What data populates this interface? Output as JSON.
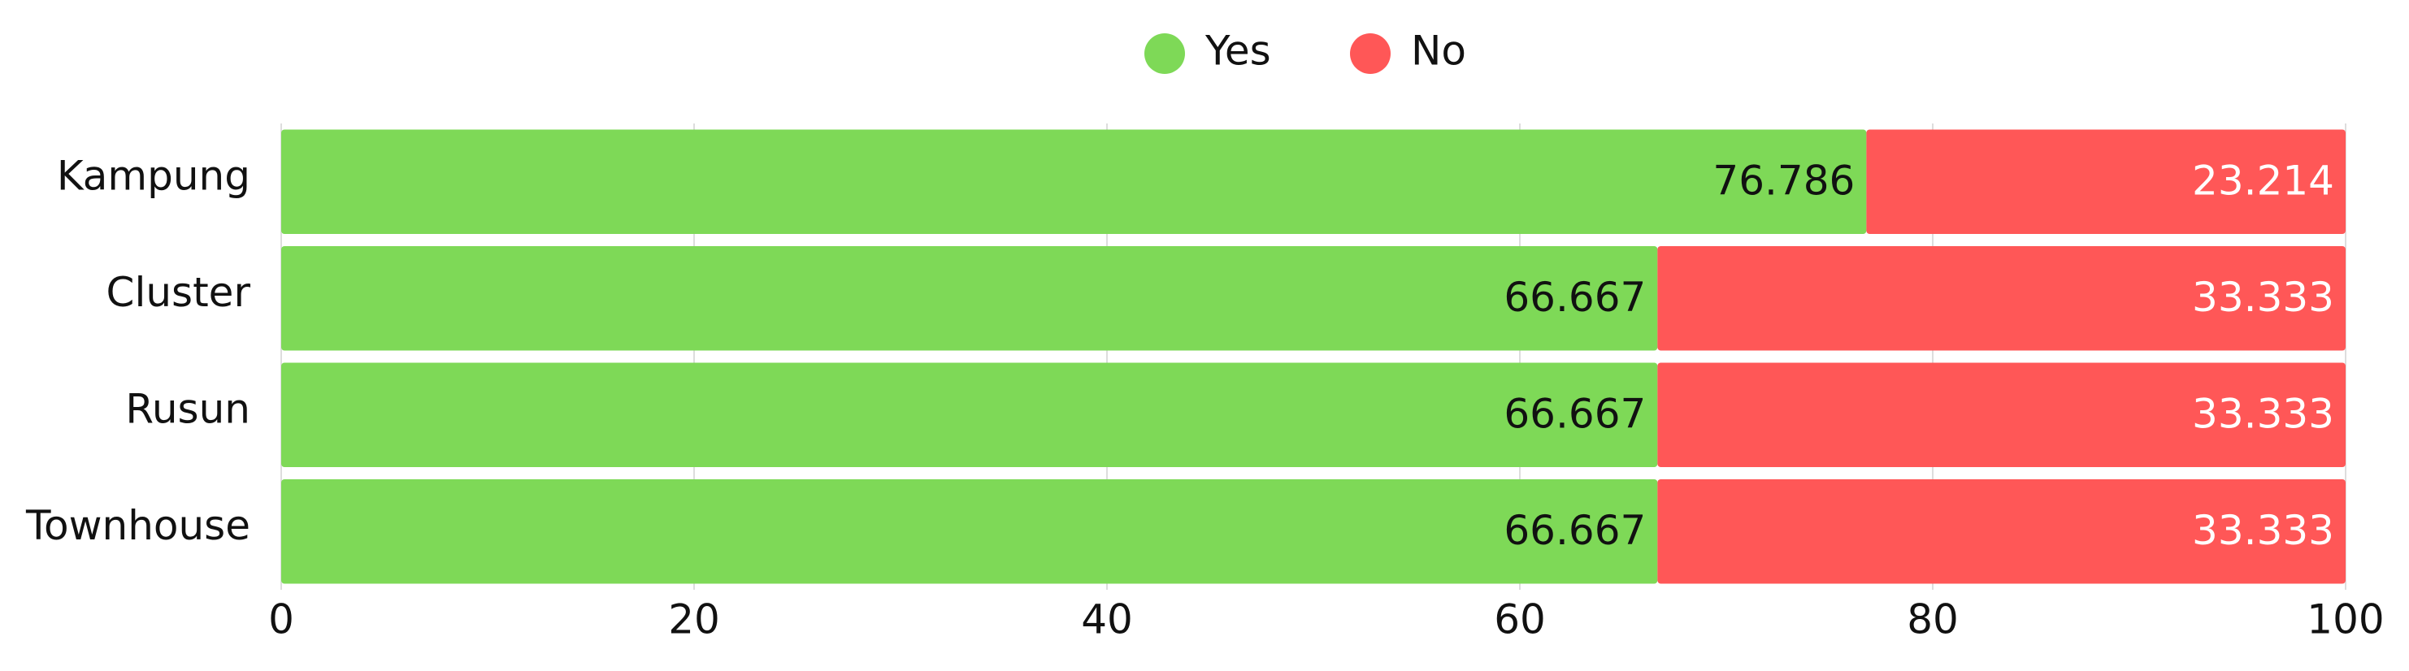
{
  "chart_data": {
    "type": "bar",
    "orientation": "horizontal",
    "stacked": true,
    "categories": [
      "Kampung",
      "Cluster",
      "Rusun",
      "Townhouse"
    ],
    "series": [
      {
        "name": "Yes",
        "color": "#7ed957",
        "values": [
          76.786,
          66.667,
          66.667,
          66.667
        ]
      },
      {
        "name": "No",
        "color": "#ff5757",
        "values": [
          23.214,
          33.333,
          33.333,
          33.333
        ]
      }
    ],
    "xlim": [
      0,
      100
    ],
    "xticks": [
      0,
      20,
      40,
      60,
      80,
      100
    ],
    "grid": true,
    "legend": "top"
  }
}
